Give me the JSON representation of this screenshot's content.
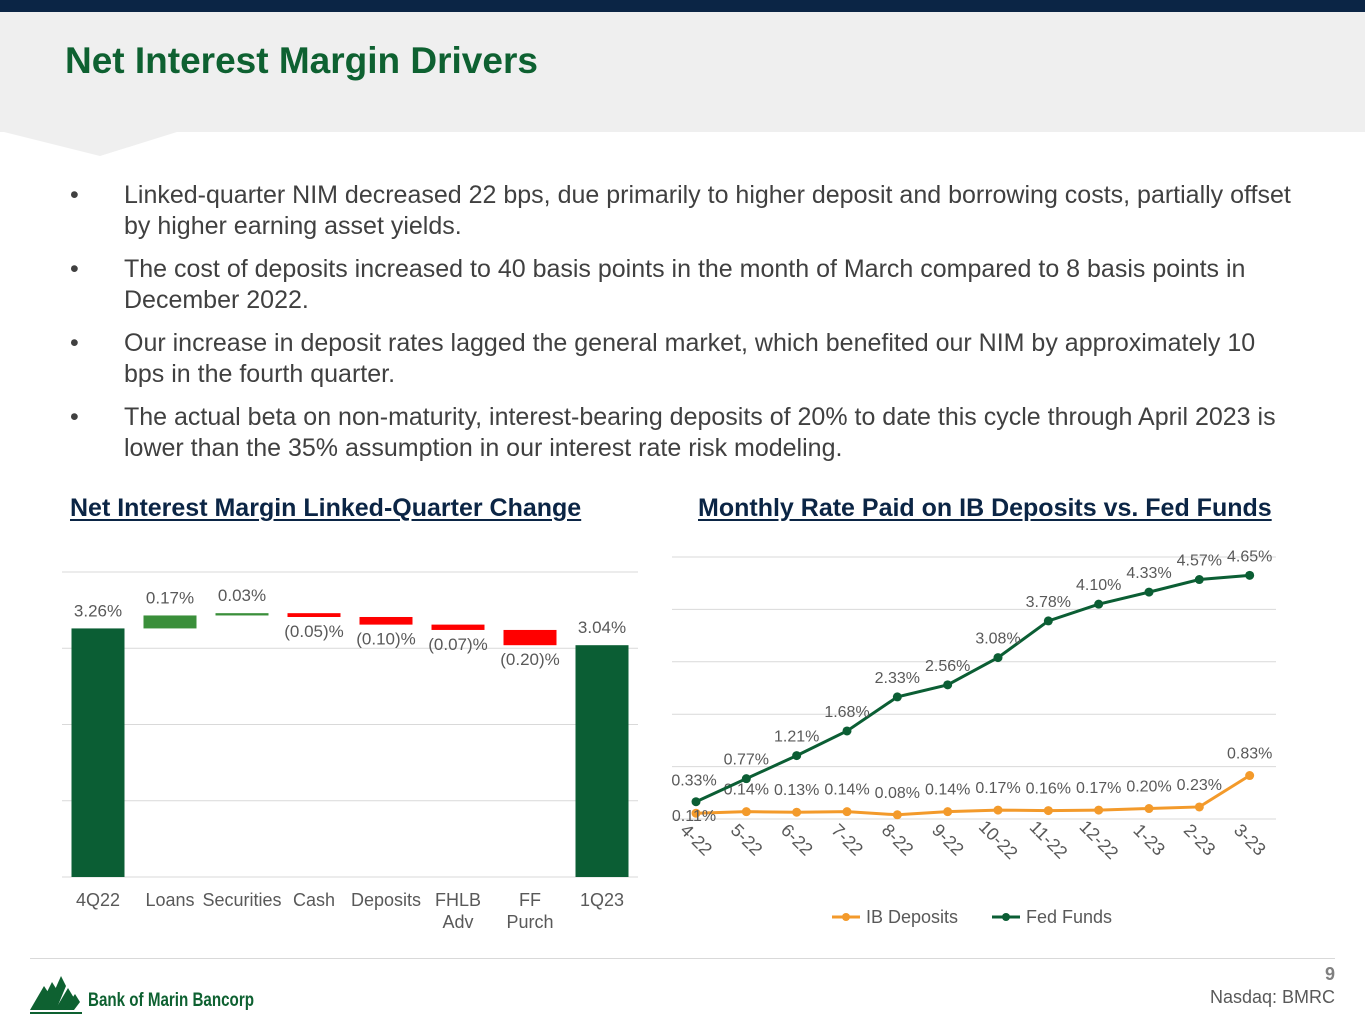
{
  "slide": {
    "title": "Net Interest Margin Drivers",
    "bullets": [
      "Linked-quarter NIM decreased 22 bps, due primarily to higher deposit and borrowing costs, partially offset by higher earning asset yields.",
      "The cost of deposits increased to 40 basis points in the month of March compared to 8 basis points in December 2022.",
      "Our increase in deposit rates lagged the general market, which benefited our NIM by approximately 10 bps in the fourth quarter.",
      "The actual beta on non-maturity, interest-bearing deposits of 20% to date this cycle through April 2023 is lower than the 35% assumption in our interest rate risk modeling."
    ],
    "bullet_symbol": "•"
  },
  "footer": {
    "company": "Bank of Marin Bancorp",
    "page_number": "9",
    "ticker": "Nasdaq: BMRC"
  },
  "colors": {
    "title_green": "#0e6131",
    "dark_green": "#0b5e34",
    "light_green": "#3a8f3a",
    "red": "#ff0000",
    "orange": "#f39a2b",
    "navy": "#0b2545"
  },
  "chart_data": [
    {
      "type": "bar",
      "subtype": "waterfall",
      "title": "Net Interest Margin Linked-Quarter Change",
      "categories": [
        [
          "4Q22"
        ],
        [
          "Loans"
        ],
        [
          "Securities"
        ],
        [
          "Cash"
        ],
        [
          "Deposits"
        ],
        [
          "FHLB",
          "Adv"
        ],
        [
          "FF",
          "Purch"
        ],
        [
          "1Q23"
        ]
      ],
      "values": [
        3.26,
        0.17,
        0.03,
        -0.05,
        -0.1,
        -0.07,
        -0.2,
        3.04
      ],
      "kinds": [
        "total",
        "increase",
        "increase",
        "decrease",
        "decrease",
        "decrease",
        "decrease",
        "total"
      ],
      "labels": [
        "3.26%",
        "0.17%",
        "0.03%",
        "(0.05)%",
        "(0.10)%",
        "(0.07)%",
        "(0.20)%",
        "3.04%"
      ],
      "ylim": [
        0.0,
        4.0
      ],
      "gridlines": [
        1.0,
        2.0,
        3.0,
        4.0
      ],
      "grid": true
    },
    {
      "type": "line",
      "title": "Monthly Rate Paid on IB Deposits vs. Fed Funds",
      "x": [
        "4-22",
        "5-22",
        "6-22",
        "7-22",
        "8-22",
        "9-22",
        "10-22",
        "11-22",
        "12-22",
        "1-23",
        "2-23",
        "3-23"
      ],
      "ylim": [
        0.0,
        5.0
      ],
      "gridlines": [
        1.0,
        2.0,
        3.0,
        4.0,
        5.0
      ],
      "grid": true,
      "legend_position": "bottom",
      "series": [
        {
          "name": "IB Deposits",
          "color": "#f39a2b",
          "values": [
            0.11,
            0.14,
            0.13,
            0.14,
            0.08,
            0.14,
            0.17,
            0.16,
            0.17,
            0.2,
            0.23,
            0.83
          ],
          "labels": [
            "0.11%",
            "0.14%",
            "0.13%",
            "0.14%",
            "0.08%",
            "0.14%",
            "0.17%",
            "0.16%",
            "0.17%",
            "0.20%",
            "0.23%",
            "0.83%"
          ]
        },
        {
          "name": "Fed Funds",
          "color": "#0b5e34",
          "values": [
            0.33,
            0.77,
            1.21,
            1.68,
            2.33,
            2.56,
            3.08,
            3.78,
            4.1,
            4.33,
            4.57,
            4.65
          ],
          "labels": [
            "0.33%",
            "0.77%",
            "1.21%",
            "1.68%",
            "2.33%",
            "2.56%",
            "3.08%",
            "3.78%",
            "4.10%",
            "4.33%",
            "4.57%",
            "4.65%"
          ]
        }
      ]
    }
  ]
}
